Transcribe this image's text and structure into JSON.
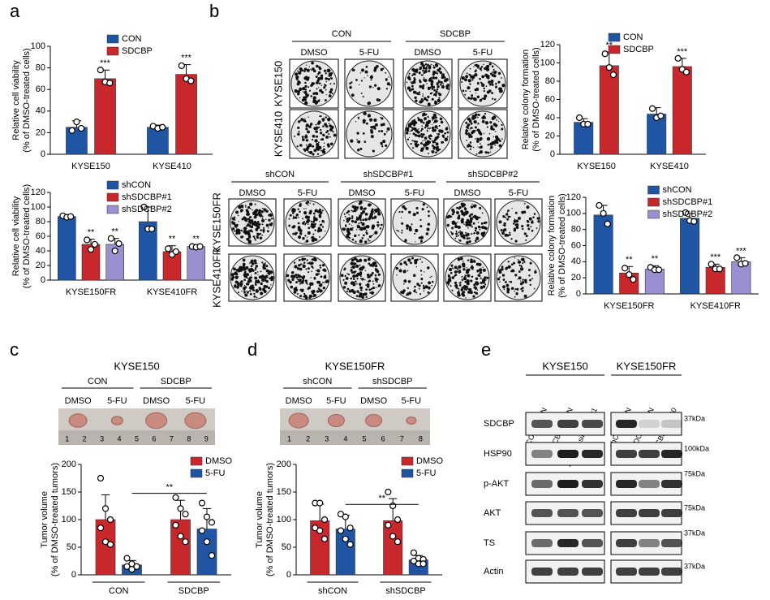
{
  "chart_data": [
    {
      "type": "bar",
      "y_label": [
        "Relative cell viability",
        "(% of DMSO-treated cells)"
      ],
      "categories": [
        "KYSE150",
        "KYSE410"
      ],
      "series": [
        {
          "name": "CON",
          "color": "#1f55a3",
          "values": [
            25,
            25
          ],
          "errors": [
            6,
            2
          ],
          "points": [
            [
              22,
              30,
              24
            ],
            [
              26,
              24,
              25
            ]
          ],
          "significance": [
            null,
            null
          ]
        },
        {
          "name": "SDCBP",
          "color": "#c8282b",
          "values": [
            70,
            74
          ],
          "errors": [
            8,
            9
          ],
          "points": [
            [
              78,
              67,
              66
            ],
            [
              82,
              70,
              68
            ]
          ],
          "significance": [
            "***",
            "***"
          ]
        }
      ],
      "ylim": [
        0,
        100
      ],
      "yticks": [
        0,
        20,
        40,
        60,
        80,
        100
      ],
      "legend": "upper center"
    },
    {
      "type": "bar",
      "y_label": [
        "Relative cell viability",
        "(% of DMSO-treated cells)"
      ],
      "categories": [
        "KYSE150FR",
        "KYSE410FR"
      ],
      "series": [
        {
          "name": "shCON",
          "color": "#1f55a3",
          "values": [
            87,
            80
          ],
          "errors": [
            2,
            20
          ],
          "points": [
            [
              88,
              86,
              87
            ],
            [
              100,
              70,
              70
            ]
          ],
          "significance": [
            null,
            null
          ]
        },
        {
          "name": "shSDCBP#1",
          "color": "#c8282b",
          "values": [
            49,
            39
          ],
          "errors": [
            7,
            8
          ],
          "points": [
            [
              55,
              42,
              49
            ],
            [
              43,
              35,
              39
            ]
          ],
          "significance": [
            "**",
            "**"
          ]
        },
        {
          "name": "shSDCBP#2",
          "color": "#9a8fd0",
          "values": [
            49,
            46
          ],
          "errors": [
            8,
            1
          ],
          "points": [
            [
              57,
              40,
              50
            ],
            [
              46,
              45,
              46
            ]
          ],
          "significance": [
            "**",
            "**"
          ]
        }
      ],
      "ylim": [
        0,
        120
      ],
      "yticks": [
        0,
        20,
        40,
        60,
        80,
        100,
        120
      ],
      "legend": "upper center"
    },
    {
      "type": "bar",
      "y_label": [
        "Relative colony formation",
        "(% of DMSO-treated cells)"
      ],
      "categories": [
        "KYSE150",
        "KYSE410"
      ],
      "series": [
        {
          "name": "CON",
          "color": "#1f55a3",
          "values": [
            35,
            44
          ],
          "errors": [
            4,
            7
          ],
          "points": [
            [
              40,
              33,
              33
            ],
            [
              50,
              40,
              42
            ]
          ],
          "significance": [
            null,
            null
          ]
        },
        {
          "name": "SDCBP",
          "color": "#c8282b",
          "values": [
            97,
            96
          ],
          "errors": [
            15,
            9
          ],
          "points": [
            [
              110,
              95,
              87
            ],
            [
              105,
              93,
              90
            ]
          ],
          "significance": [
            "**",
            "***"
          ]
        }
      ],
      "ylim": [
        0,
        120
      ],
      "yticks": [
        0,
        20,
        40,
        60,
        80,
        100,
        120
      ],
      "legend": "upper center"
    },
    {
      "type": "bar",
      "y_label": [
        "Relative colony formation",
        "(% of DMSO-treated cells)"
      ],
      "categories": [
        "KYSE150FR",
        "KYSE410FR"
      ],
      "series": [
        {
          "name": "shCON",
          "color": "#1f55a3",
          "values": [
            98,
            94
          ],
          "errors": [
            12,
            6
          ],
          "points": [
            [
              110,
              100,
              87
            ],
            [
              101,
              91,
              90
            ]
          ],
          "significance": [
            null,
            null
          ]
        },
        {
          "name": "shSDCBP#1",
          "color": "#c8282b",
          "values": [
            26,
            33
          ],
          "errors": [
            8,
            4
          ],
          "points": [
            [
              32,
              24,
              18
            ],
            [
              37,
              31,
              31
            ]
          ],
          "significance": [
            "**",
            "***"
          ]
        },
        {
          "name": "shSDCBP#2",
          "color": "#9a8fd0",
          "values": [
            31,
            40
          ],
          "errors": [
            4,
            5
          ],
          "points": [
            [
              33,
              30,
              30
            ],
            [
              45,
              37,
              38
            ]
          ],
          "significance": [
            "**",
            "***"
          ]
        }
      ],
      "ylim": [
        0,
        120
      ],
      "yticks": [
        0,
        20,
        40,
        60,
        80,
        100,
        120
      ],
      "legend": "upper center"
    },
    {
      "type": "bar",
      "y_label": [
        "Tumor volume",
        "(% of DMSO-treated tumors)"
      ],
      "categories": [
        "CON",
        "SDCBP"
      ],
      "category_brackets": true,
      "series": [
        {
          "name": "DMSO",
          "color": "#c8282b",
          "values": [
            100,
            100
          ],
          "errors": [
            45,
            35
          ],
          "points": [
            [
              175,
              120,
              100,
              85,
              60,
              55
            ],
            [
              140,
              120,
              110,
              90,
              70,
              60
            ]
          ],
          "significance": [
            null,
            null
          ]
        },
        {
          "name": "5-FU",
          "color": "#1f55a3",
          "values": [
            18,
            83
          ],
          "errors": [
            8,
            37
          ],
          "points": [
            [
              30,
              20,
              15,
              15,
              10,
              15
            ],
            [
              130,
              105,
              95,
              80,
              60,
              35
            ]
          ],
          "significance": [
            null,
            null
          ]
        }
      ],
      "bracket": {
        "label": "**"
      },
      "ylim": [
        0,
        200
      ],
      "yticks": [
        0,
        50,
        100,
        150,
        200
      ],
      "legend": "upper right"
    },
    {
      "type": "bar",
      "y_label": [
        "Tumor volume",
        "(% of DMSO-treated tumors)"
      ],
      "categories": [
        "shCON",
        "shSDCBP"
      ],
      "category_brackets": true,
      "series": [
        {
          "name": "DMSO",
          "color": "#c8282b",
          "values": [
            98,
            98
          ],
          "errors": [
            30,
            40
          ],
          "points": [
            [
              130,
              130,
              100,
              85,
              80,
              65
            ],
            [
              150,
              125,
              100,
              90,
              70,
              60
            ]
          ],
          "significance": [
            null,
            null
          ]
        },
        {
          "name": "5-FU",
          "color": "#1f55a3",
          "values": [
            83,
            27
          ],
          "errors": [
            25,
            8
          ],
          "points": [
            [
              110,
              105,
              85,
              80,
              65,
              55
            ],
            [
              40,
              30,
              28,
              25,
              20,
              20
            ]
          ],
          "significance": [
            null,
            null
          ]
        }
      ],
      "bracket": {
        "label": "**"
      },
      "ylim": [
        0,
        200
      ],
      "yticks": [
        0,
        50,
        100,
        150,
        200
      ],
      "legend": "upper right"
    }
  ],
  "panel_letters": [
    "a",
    "b",
    "c",
    "d",
    "e"
  ],
  "colony_top": {
    "groups": [
      "CON",
      "SDCBP"
    ],
    "treatments": [
      "DMSO",
      "5-FU",
      "DMSO",
      "5-FU"
    ],
    "rows": [
      "KYSE150",
      "KYSE410"
    ]
  },
  "colony_bottom": {
    "groups": [
      "shCON",
      "shSDCBP#1",
      "shSDCBP#2"
    ],
    "treatments": [
      "DMSO",
      "5-FU",
      "DMSO",
      "5-FU",
      "DMSO",
      "5-FU"
    ],
    "rows": [
      "KYSE150FR",
      "KYSE410FR"
    ]
  },
  "tumor_c": {
    "title": "KYSE150",
    "groups": [
      "CON",
      "SDCBP"
    ],
    "treatments": [
      "DMSO",
      "5-FU",
      "DMSO",
      "5-FU"
    ],
    "ruler": [
      1,
      2,
      3,
      4,
      5,
      6,
      7,
      8,
      9
    ]
  },
  "tumor_d": {
    "title": "KYSE150FR",
    "groups": [
      "shCON",
      "shSDCBP"
    ],
    "treatments": [
      "DMSO",
      "5-FU",
      "DMSO",
      "5-FU"
    ],
    "ruler": [
      1,
      2,
      3,
      4,
      5,
      6,
      7,
      8
    ]
  },
  "western": {
    "cell_lines": [
      "KYSE150",
      "KYSE150FR"
    ],
    "lanes": [
      "CON-siCON",
      "SDCBP-siCON",
      "SDCBP-siHSP90#1",
      "shCON-CON",
      "shSDCBP-CON",
      "shSDCBP-HSP90"
    ],
    "proteins": [
      "SDCBP",
      "HSP90",
      "p-AKT",
      "AKT",
      "TS",
      "Actin"
    ],
    "markers": [
      "37kDa",
      "100kDa",
      "75kDa",
      "75kDa",
      "37kDa",
      "37kDa"
    ]
  }
}
